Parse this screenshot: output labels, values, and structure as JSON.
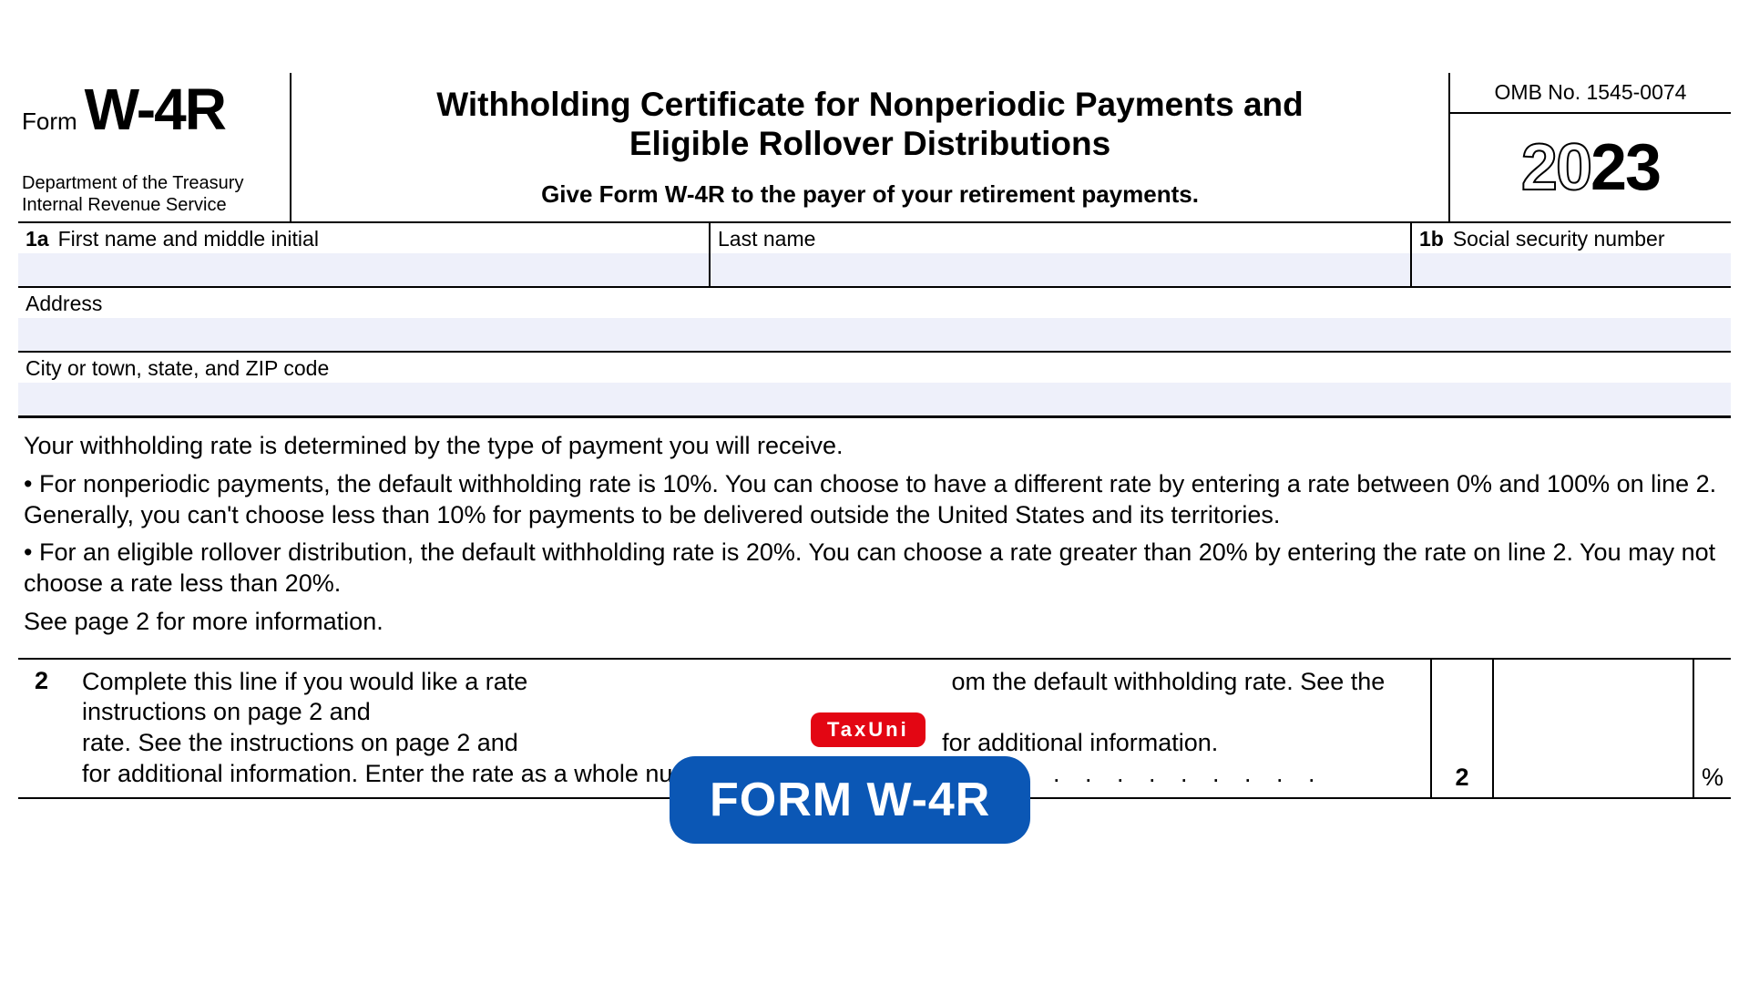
{
  "header": {
    "form_word": "Form",
    "form_number": "W-4R",
    "dept_line1": "Department of the Treasury",
    "dept_line2": "Internal Revenue Service",
    "title_line1": "Withholding Certificate for Nonperiodic Payments and",
    "title_line2": "Eligible Rollover Distributions",
    "subtitle": "Give Form W-4R to the payer of your retirement payments.",
    "omb": "OMB No. 1545-0074",
    "year_outline": "20",
    "year_solid": "23"
  },
  "fields": {
    "r1a_tag": "1a",
    "r1a_label": "First name and middle initial",
    "r1_last_label": "Last name",
    "r1b_tag": "1b",
    "r1b_label": "Social security number",
    "address_label": "Address",
    "city_label": "City or town, state, and ZIP code"
  },
  "body": {
    "intro": "Your withholding rate is determined by the type of payment you will receive.",
    "bullet1": "• For nonperiodic payments, the default withholding rate is 10%. You can choose to have a different rate by entering a rate between 0% and 100% on line 2. Generally, you can't choose less than 10% for payments to be delivered outside the United States and its territories.",
    "bullet2": "• For an eligible rollover distribution, the default withholding rate is 20%. You can choose a rate greater than 20% by entering the rate on line 2. You may not choose a rate less than 20%.",
    "see_page": "See page 2 for more information."
  },
  "line2": {
    "num": "2",
    "text_a": "Complete this line if you would like a rate",
    "text_b": "om the default withholding rate. See the instructions on page 2 and",
    "text_c": "for additional information. Enter the rate as a whole number (no deci",
    "dots": ".  .  .  .  .  .  .  .  .  .  .  .  .  .  .  .",
    "col_num": "2",
    "pct": "%"
  },
  "badges": {
    "red": "TaxUni",
    "blue": "FORM W-4R"
  },
  "colors": {
    "fill_bg": "#eef0fa",
    "red_badge": "#e30613",
    "blue_badge": "#0b57b5"
  }
}
